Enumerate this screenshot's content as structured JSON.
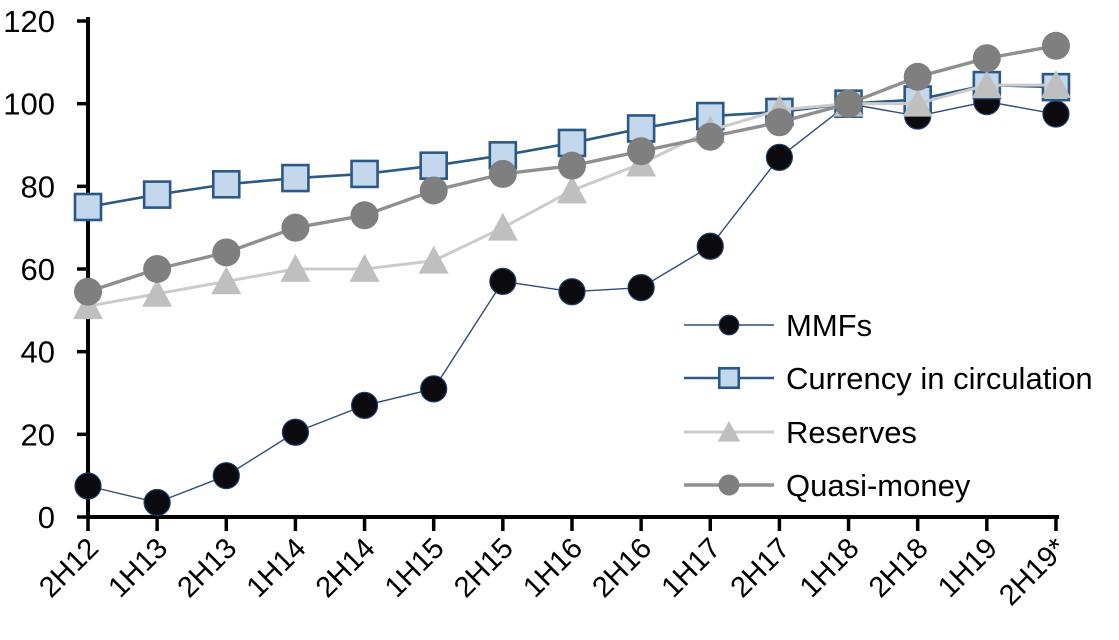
{
  "chart_data": {
    "type": "line",
    "title": "",
    "categories": [
      "2H12",
      "1H13",
      "2H13",
      "1H14",
      "2H14",
      "1H15",
      "2H15",
      "1H16",
      "2H16",
      "1H17",
      "2H17",
      "1H18",
      "2H18",
      "1H19",
      "2H19*"
    ],
    "series": [
      {
        "name": "MMFs",
        "marker": "circle",
        "marker_fill": "#0a0a0f",
        "marker_stroke": "#1f3a66",
        "marker_stroke_width": 1.2,
        "marker_size": 26,
        "line_color": "#2e4d76",
        "line_width": 1.4,
        "values": [
          7.5,
          3.5,
          10,
          20.5,
          27,
          31,
          57,
          54.5,
          55.5,
          65.5,
          87,
          100,
          97,
          100.5,
          97.5
        ]
      },
      {
        "name": "Currency in circulation",
        "marker": "square",
        "marker_fill": "#c3d8ec",
        "marker_stroke": "#2b5884",
        "marker_stroke_width": 2.6,
        "marker_size": 26,
        "line_color": "#2b5884",
        "line_width": 2.6,
        "values": [
          75,
          78,
          80.5,
          82,
          83,
          85,
          87.5,
          90.5,
          94,
          97,
          98,
          100,
          101,
          104.5,
          104
        ]
      },
      {
        "name": "Reserves",
        "marker": "triangle",
        "marker_fill": "#bfbfbf",
        "marker_stroke": "#bfbfbf",
        "marker_stroke_width": 0,
        "marker_size": 30,
        "line_color": "#cbcbcb",
        "line_width": 3,
        "values": [
          51,
          54,
          57,
          60,
          60,
          62,
          70,
          79,
          85.5,
          93.5,
          98.5,
          100,
          100,
          104.5,
          104.5
        ]
      },
      {
        "name": "Quasi-money",
        "marker": "circle",
        "marker_fill": "#7f7f7f",
        "marker_stroke": "#7f7f7f",
        "marker_stroke_width": 0,
        "marker_size": 28,
        "line_color": "#8f8f8f",
        "line_width": 3.4,
        "values": [
          54.5,
          60,
          64,
          70,
          73,
          79,
          83,
          85,
          88.5,
          92,
          95.5,
          100,
          106.5,
          111,
          114
        ]
      }
    ],
    "xlabel": "",
    "ylabel": "",
    "ylim": [
      0,
      120
    ],
    "y_step": 20,
    "y_tick_labels": [
      "0",
      "20",
      "40",
      "60",
      "80",
      "100",
      "120"
    ],
    "grid": false,
    "legend_position": "inside-right",
    "axis_color": "#000000"
  }
}
